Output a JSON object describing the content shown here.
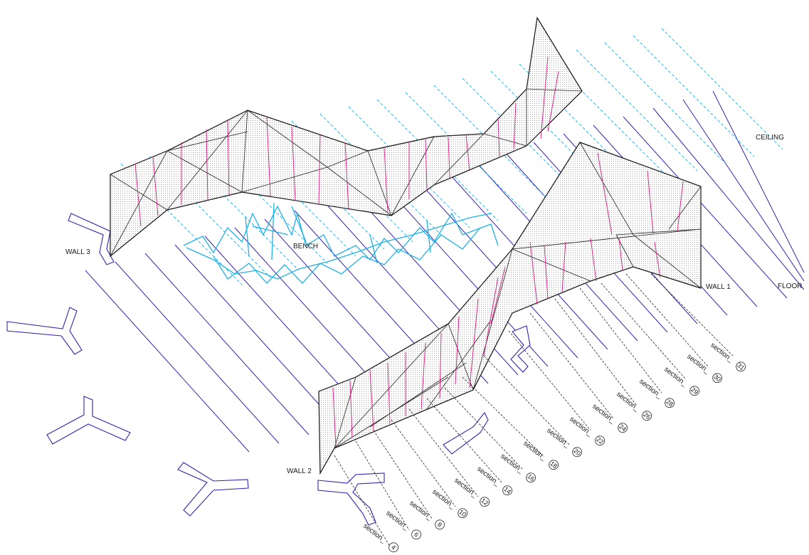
{
  "labels": {
    "ceiling": "CEILING",
    "floor": "FLOOR",
    "wall1": "WALL 1",
    "wall2": "WALL 2",
    "wall3": "WALL 3",
    "bench": "BENCH"
  },
  "sections": {
    "prefix": "section_",
    "numbers": [
      "4",
      "6",
      "8",
      "10",
      "12",
      "14",
      "16",
      "18",
      "20",
      "22",
      "24",
      "26",
      "28",
      "29",
      "30",
      "31"
    ]
  },
  "colors": {
    "floor_lines": "#3b1fb0",
    "ceiling_lines": "#1fa6df",
    "wall_sections": "#d4197f",
    "bench": "#1fb2e6",
    "outline": "#111111",
    "hatch": "#c8c8c8"
  }
}
